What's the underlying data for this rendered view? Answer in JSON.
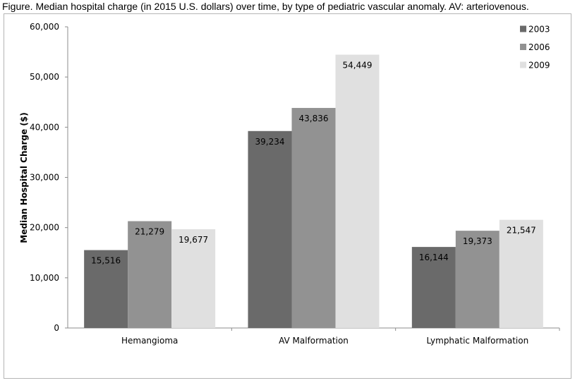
{
  "caption": "Figure. Median hospital charge (in 2015 U.S. dollars) over time, by type of pediatric vascular anomaly. AV: arteriovenous.",
  "chart_data": {
    "type": "bar",
    "title": "",
    "xlabel": "",
    "ylabel": "Median Hospital Charge ($)",
    "categories": [
      "Hemangioma",
      "AV Malformation",
      "Lymphatic Malformation"
    ],
    "series": [
      {
        "name": "2003",
        "color": "#6a6a6a",
        "values": [
          15516,
          39234,
          16144
        ],
        "labels": [
          "15,516",
          "39,234",
          "16,144"
        ]
      },
      {
        "name": "2006",
        "color": "#929292",
        "values": [
          21279,
          43836,
          19373
        ],
        "labels": [
          "21,279",
          "43,836",
          "19,373"
        ]
      },
      {
        "name": "2009",
        "color": "#e0e0e0",
        "values": [
          19677,
          54449,
          21547
        ],
        "labels": [
          "19,677",
          "54,449",
          "21,547"
        ]
      }
    ],
    "yticks": [
      0,
      10000,
      20000,
      30000,
      40000,
      50000,
      60000
    ],
    "ytick_labels": [
      "0",
      "10,000",
      "20,000",
      "30,000",
      "40,000",
      "50,000",
      "60,000"
    ],
    "ylim": [
      0,
      60000
    ],
    "legend_position": "top-right",
    "grid": false
  }
}
